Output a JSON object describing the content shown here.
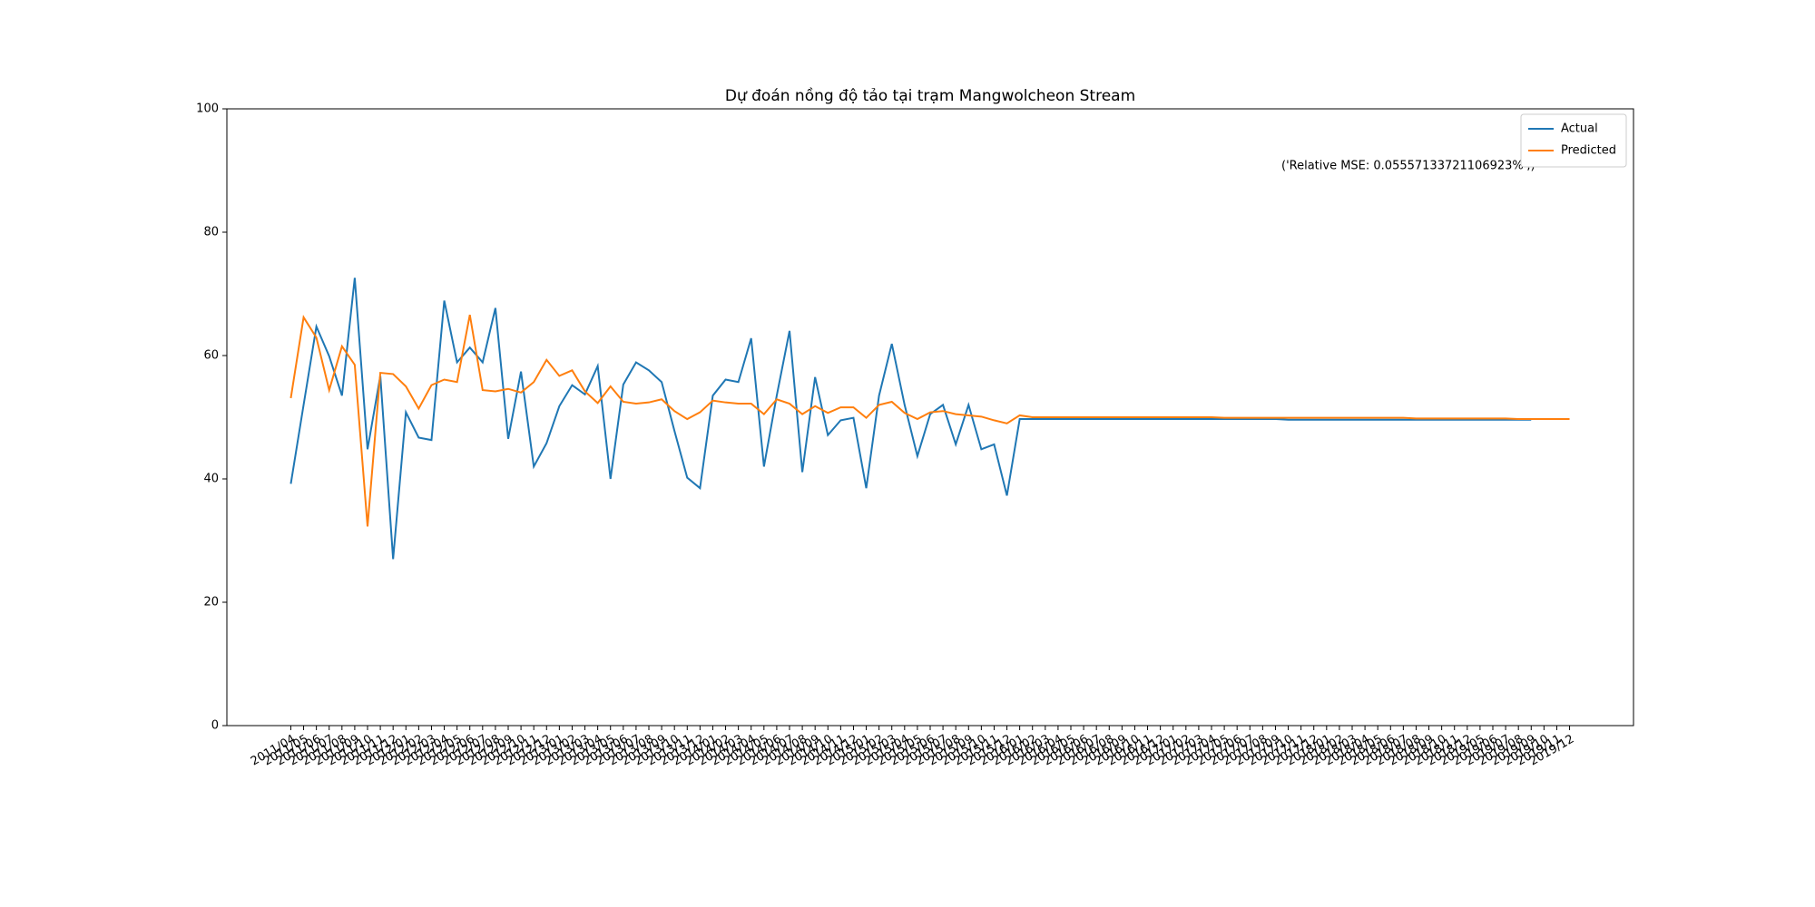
{
  "chart_data": {
    "type": "line",
    "title": "Dự đoán nồng độ tảo tại trạm Mangwolcheon Stream",
    "annotation": "('Relative MSE: 0.05557133721106923%',)",
    "categories": [
      "2011/04",
      "2011/05",
      "2011/06",
      "2011/07",
      "2011/08",
      "2011/09",
      "2011/10",
      "2011/11",
      "2011/12",
      "2012/01",
      "2012/02",
      "2012/03",
      "2012/04",
      "2012/05",
      "2012/06",
      "2012/07",
      "2012/08",
      "2012/09",
      "2012/10",
      "2012/11",
      "2012/12",
      "2013/01",
      "2013/02",
      "2013/03",
      "2013/04",
      "2013/05",
      "2013/06",
      "2013/07",
      "2013/08",
      "2013/09",
      "2013/10",
      "2013/11",
      "2013/12",
      "2014/01",
      "2014/02",
      "2014/03",
      "2014/04",
      "2014/05",
      "2014/06",
      "2014/07",
      "2014/08",
      "2014/09",
      "2014/10",
      "2014/11",
      "2014/12",
      "2015/01",
      "2015/02",
      "2015/03",
      "2015/04",
      "2015/05",
      "2015/06",
      "2015/07",
      "2015/08",
      "2015/09",
      "2015/10",
      "2015/11",
      "2015/12",
      "2016/01",
      "2016/02",
      "2016/03",
      "2016/04",
      "2016/05",
      "2016/06",
      "2016/07",
      "2016/08",
      "2016/09",
      "2016/10",
      "2016/11",
      "2016/12",
      "2017/01",
      "2017/02",
      "2017/03",
      "2017/04",
      "2017/05",
      "2017/06",
      "2017/07",
      "2017/08",
      "2017/09",
      "2017/10",
      "2017/11",
      "2017/12",
      "2018/01",
      "2018/02",
      "2018/03",
      "2018/04",
      "2018/05",
      "2018/06",
      "2018/07",
      "2018/08",
      "2018/09",
      "2018/10",
      "2018/11",
      "2018/12",
      "2019/05",
      "2019/06",
      "2019/07",
      "2019/08",
      "2019/09",
      "2019/10",
      "2019/11",
      "2019/12"
    ],
    "series": [
      {
        "name": "Actual",
        "color": "#1f77b4",
        "values": [
          39.2,
          52,
          64.7,
          59.9,
          53.5,
          72.6,
          44.8,
          56.7,
          27.0,
          50.8,
          46.7,
          46.3,
          68.9,
          58.9,
          61.3,
          58.9,
          67.7,
          46.5,
          57.4,
          42.0,
          45.8,
          51.8,
          55.2,
          53.7,
          58.3,
          40.0,
          55.3,
          58.9,
          57.6,
          55.7,
          47.8,
          40.2,
          38.5,
          53.5,
          56.1,
          55.7,
          62.8,
          42.0,
          53.5,
          64.0,
          41.1,
          56.5,
          47.1,
          49.5,
          49.9,
          38.5,
          53.5,
          61.9,
          52.0,
          43.7,
          50.5,
          52.0,
          45.6,
          52.0,
          44.8,
          45.6,
          37.3,
          49.7,
          49.7,
          49.7,
          49.7,
          49.7,
          49.7,
          49.7,
          49.7,
          49.7,
          49.7,
          49.7,
          49.7,
          49.7,
          49.7,
          49.7,
          49.7,
          49.7,
          49.7,
          49.7,
          49.7,
          49.7,
          49.6,
          49.6,
          49.6,
          49.6,
          49.6,
          49.6,
          49.6,
          49.6,
          49.6,
          49.6,
          49.6,
          49.6,
          49.6,
          49.6,
          49.6,
          49.6,
          49.6,
          49.6,
          49.6,
          49.6,
          null,
          null,
          null
        ]
      },
      {
        "name": "Predicted",
        "color": "#ff7f0e",
        "values": [
          53.1,
          66.2,
          62.9,
          54.4,
          61.5,
          58.5,
          32.3,
          57.2,
          57.0,
          55.0,
          51.4,
          55.2,
          56.1,
          55.7,
          66.6,
          54.4,
          54.2,
          54.6,
          54.0,
          55.7,
          59.3,
          56.7,
          57.6,
          54.2,
          52.3,
          55.0,
          52.5,
          52.2,
          52.4,
          52.9,
          51.0,
          49.7,
          50.8,
          52.7,
          52.4,
          52.2,
          52.2,
          50.5,
          52.9,
          52.2,
          50.5,
          51.8,
          50.7,
          51.6,
          51.6,
          49.9,
          52.0,
          52.5,
          50.7,
          49.7,
          50.8,
          51.0,
          50.5,
          50.3,
          50.1,
          49.5,
          49.0,
          50.3,
          50.0,
          50.0,
          50.0,
          50.0,
          50.0,
          50.0,
          50.0,
          50.0,
          50.0,
          50.0,
          50.0,
          50.0,
          50.0,
          50.0,
          50.0,
          49.9,
          49.9,
          49.9,
          49.9,
          49.9,
          49.9,
          49.9,
          49.9,
          49.9,
          49.9,
          49.9,
          49.9,
          49.9,
          49.9,
          49.9,
          49.8,
          49.8,
          49.8,
          49.8,
          49.8,
          49.8,
          49.8,
          49.8,
          49.7,
          49.7,
          49.7,
          49.7,
          49.7
        ]
      }
    ],
    "xlim": [
      -5,
      105
    ],
    "ylim": [
      0,
      100
    ],
    "yticks": [
      0,
      20,
      40,
      60,
      80,
      100
    ],
    "grid": false,
    "legend": "upper right"
  }
}
